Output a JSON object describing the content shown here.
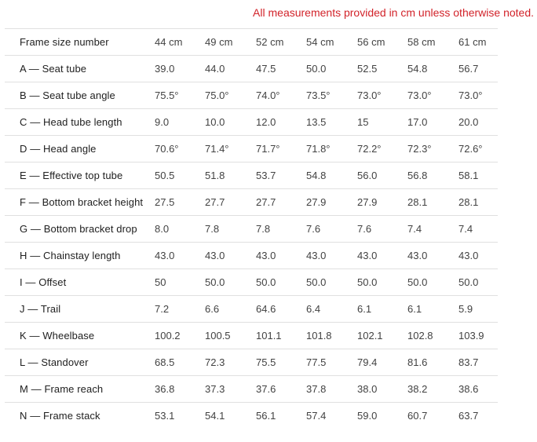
{
  "note": "All measurements provided in cm unless otherwise noted.",
  "colors": {
    "note_red": "#d2232a",
    "label_text": "#212121",
    "value_text": "#424242",
    "row_border": "#e0e0e0",
    "background": "#ffffff"
  },
  "chart_data": {
    "type": "table",
    "header": {
      "label": "Frame size number",
      "size_columns": [
        "44 cm",
        "49 cm",
        "52 cm",
        "54 cm",
        "56 cm",
        "58 cm",
        "61 cm"
      ]
    },
    "rows": [
      {
        "label": "A — Seat tube",
        "values": [
          "39.0",
          "44.0",
          "47.5",
          "50.0",
          "52.5",
          "54.8",
          "56.7"
        ]
      },
      {
        "label": "B — Seat tube angle",
        "values": [
          "75.5°",
          "75.0°",
          "74.0°",
          "73.5°",
          "73.0°",
          "73.0°",
          "73.0°"
        ]
      },
      {
        "label": "C — Head tube length",
        "values": [
          "9.0",
          "10.0",
          "12.0",
          "13.5",
          "15",
          "17.0",
          "20.0"
        ]
      },
      {
        "label": "D — Head angle",
        "values": [
          "70.6°",
          "71.4°",
          "71.7°",
          "71.8°",
          "72.2°",
          "72.3°",
          "72.6°"
        ]
      },
      {
        "label": "E — Effective top tube",
        "values": [
          "50.5",
          "51.8",
          "53.7",
          "54.8",
          "56.0",
          "56.8",
          "58.1"
        ]
      },
      {
        "label": "F — Bottom bracket height",
        "values": [
          "27.5",
          "27.7",
          "27.7",
          "27.9",
          "27.9",
          "28.1",
          "28.1"
        ]
      },
      {
        "label": "G — Bottom bracket drop",
        "values": [
          "8.0",
          "7.8",
          "7.8",
          "7.6",
          "7.6",
          "7.4",
          "7.4"
        ]
      },
      {
        "label": "H — Chainstay length",
        "values": [
          "43.0",
          "43.0",
          "43.0",
          "43.0",
          "43.0",
          "43.0",
          "43.0"
        ]
      },
      {
        "label": "I — Offset",
        "values": [
          "50",
          "50.0",
          "50.0",
          "50.0",
          "50.0",
          "50.0",
          "50.0"
        ]
      },
      {
        "label": "J — Trail",
        "values": [
          "7.2",
          "6.6",
          "64.6",
          "6.4",
          "6.1",
          "6.1",
          "5.9"
        ]
      },
      {
        "label": "K — Wheelbase",
        "values": [
          "100.2",
          "100.5",
          "101.1",
          "101.8",
          "102.1",
          "102.8",
          "103.9"
        ]
      },
      {
        "label": "L — Standover",
        "values": [
          "68.5",
          "72.3",
          "75.5",
          "77.5",
          "79.4",
          "81.6",
          "83.7"
        ]
      },
      {
        "label": "M — Frame reach",
        "values": [
          "36.8",
          "37.3",
          "37.6",
          "37.8",
          "38.0",
          "38.2",
          "38.6"
        ]
      },
      {
        "label": "N — Frame stack",
        "values": [
          "53.1",
          "54.1",
          "56.1",
          "57.4",
          "59.0",
          "60.7",
          "63.7"
        ]
      }
    ]
  }
}
